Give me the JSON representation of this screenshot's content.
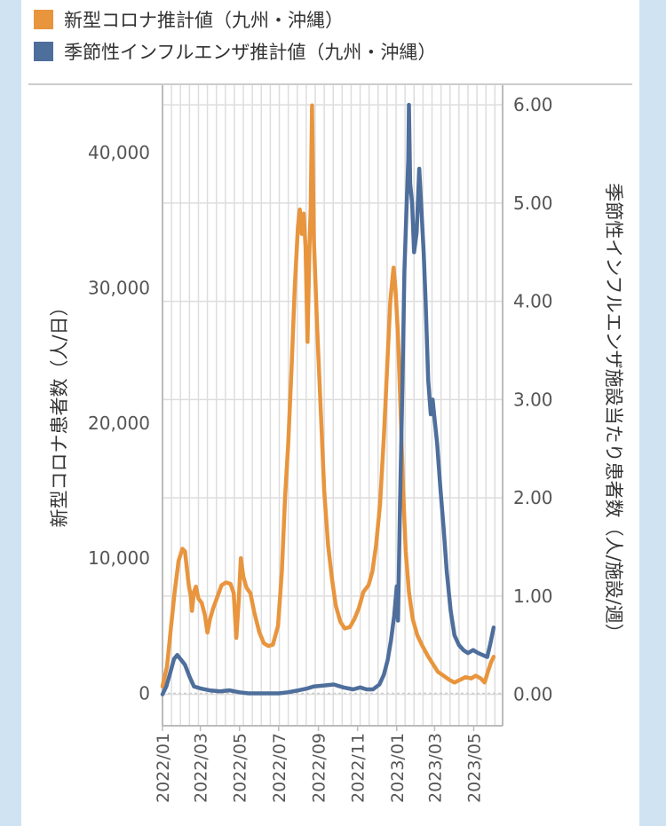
{
  "chart_data": {
    "type": "line",
    "legend": {
      "placement": "top-left",
      "entries": [
        "新型コロナ推計値（九州・沖縄）",
        "季節性インフルエンザ推計値（九州・沖縄）"
      ]
    },
    "xlabel": "",
    "ylabel": "新型コロナ患者数（人/日）",
    "y2label": "季節性インフルエンザ施設当たり患者数（人/施設/週）",
    "x_ticks": [
      "2022/01",
      "2022/03",
      "2022/05",
      "2022/07",
      "2022/09",
      "2022/11",
      "2023/01",
      "2023/03",
      "2023/05"
    ],
    "x_range": [
      "2022-01-01",
      "2023-06-15"
    ],
    "ylim": [
      -2400,
      45000
    ],
    "y_ticks": [
      0,
      10000,
      20000,
      30000,
      40000
    ],
    "y_tick_labels": [
      "0",
      "10,000",
      "20,000",
      "30,000",
      "40,000"
    ],
    "y2lim": [
      -0.32,
      6.2
    ],
    "y2_ticks": [
      0,
      1,
      2,
      3,
      4,
      5,
      6
    ],
    "y2_tick_labels": [
      "0.00",
      "1.00",
      "2.00",
      "3.00",
      "4.00",
      "5.00",
      "6.00"
    ],
    "grid": true,
    "series": [
      {
        "name": "新型コロナ推計値（九州・沖縄）",
        "axis": "left",
        "color": "#e8953e",
        "points": [
          [
            "2022-01-01",
            500
          ],
          [
            "2022-01-08",
            2000
          ],
          [
            "2022-01-14",
            4800
          ],
          [
            "2022-01-20",
            7500
          ],
          [
            "2022-01-26",
            9800
          ],
          [
            "2022-02-01",
            10700
          ],
          [
            "2022-02-05",
            10500
          ],
          [
            "2022-02-08",
            9200
          ],
          [
            "2022-02-11",
            8000
          ],
          [
            "2022-02-14",
            7200
          ],
          [
            "2022-02-16",
            6100
          ],
          [
            "2022-02-19",
            7500
          ],
          [
            "2022-02-22",
            7900
          ],
          [
            "2022-02-26",
            7000
          ],
          [
            "2022-03-03",
            6700
          ],
          [
            "2022-03-08",
            5800
          ],
          [
            "2022-03-12",
            4500
          ],
          [
            "2022-03-16",
            5500
          ],
          [
            "2022-03-21",
            6300
          ],
          [
            "2022-03-28",
            7200
          ],
          [
            "2022-04-03",
            8000
          ],
          [
            "2022-04-10",
            8200
          ],
          [
            "2022-04-17",
            8100
          ],
          [
            "2022-04-22",
            7400
          ],
          [
            "2022-04-26",
            4100
          ],
          [
            "2022-04-30",
            7000
          ],
          [
            "2022-05-03",
            10000
          ],
          [
            "2022-05-07",
            8600
          ],
          [
            "2022-05-12",
            7800
          ],
          [
            "2022-05-18",
            7400
          ],
          [
            "2022-05-24",
            6000
          ],
          [
            "2022-06-01",
            4500
          ],
          [
            "2022-06-08",
            3700
          ],
          [
            "2022-06-15",
            3500
          ],
          [
            "2022-06-22",
            3600
          ],
          [
            "2022-06-30",
            5000
          ],
          [
            "2022-07-06",
            9000
          ],
          [
            "2022-07-11",
            14500
          ],
          [
            "2022-07-16",
            18500
          ],
          [
            "2022-07-21",
            24000
          ],
          [
            "2022-07-26",
            30000
          ],
          [
            "2022-07-31",
            34500
          ],
          [
            "2022-08-03",
            35800
          ],
          [
            "2022-08-06",
            34000
          ],
          [
            "2022-08-09",
            35500
          ],
          [
            "2022-08-12",
            33000
          ],
          [
            "2022-08-15",
            26000
          ],
          [
            "2022-08-18",
            33000
          ],
          [
            "2022-08-20",
            36000
          ],
          [
            "2022-08-22",
            43500
          ],
          [
            "2022-08-25",
            33500
          ],
          [
            "2022-08-30",
            27000
          ],
          [
            "2022-09-05",
            20500
          ],
          [
            "2022-09-10",
            15000
          ],
          [
            "2022-09-16",
            11000
          ],
          [
            "2022-09-22",
            8500
          ],
          [
            "2022-09-28",
            6500
          ],
          [
            "2022-10-05",
            5300
          ],
          [
            "2022-10-12",
            4800
          ],
          [
            "2022-10-20",
            4900
          ],
          [
            "2022-10-27",
            5500
          ],
          [
            "2022-11-03",
            6300
          ],
          [
            "2022-11-10",
            7500
          ],
          [
            "2022-11-18",
            8000
          ],
          [
            "2022-11-24",
            9000
          ],
          [
            "2022-11-30",
            11000
          ],
          [
            "2022-12-06",
            14000
          ],
          [
            "2022-12-12",
            19000
          ],
          [
            "2022-12-17",
            24000
          ],
          [
            "2022-12-22",
            29000
          ],
          [
            "2022-12-27",
            31500
          ],
          [
            "2022-12-30",
            30000
          ],
          [
            "2023-01-03",
            26500
          ],
          [
            "2023-01-07",
            21000
          ],
          [
            "2023-01-11",
            15000
          ],
          [
            "2023-01-15",
            10500
          ],
          [
            "2023-01-20",
            7500
          ],
          [
            "2023-01-26",
            5500
          ],
          [
            "2023-02-02",
            4300
          ],
          [
            "2023-02-10",
            3500
          ],
          [
            "2023-02-18",
            2800
          ],
          [
            "2023-02-26",
            2200
          ],
          [
            "2023-03-06",
            1600
          ],
          [
            "2023-03-15",
            1300
          ],
          [
            "2023-03-24",
            1000
          ],
          [
            "2023-04-01",
            800
          ],
          [
            "2023-04-10",
            1000
          ],
          [
            "2023-04-18",
            1200
          ],
          [
            "2023-04-27",
            1100
          ],
          [
            "2023-05-04",
            1300
          ],
          [
            "2023-05-12",
            1100
          ],
          [
            "2023-05-18",
            800
          ],
          [
            "2023-05-23",
            1600
          ],
          [
            "2023-05-28",
            2300
          ],
          [
            "2023-06-01",
            2700
          ]
        ]
      },
      {
        "name": "季節性インフルエンザ推計値（九州・沖縄）",
        "axis": "right",
        "color": "#4e6e9c",
        "points": [
          [
            "2022-01-01",
            0.0
          ],
          [
            "2022-01-07",
            0.08
          ],
          [
            "2022-01-13",
            0.22
          ],
          [
            "2022-01-19",
            0.36
          ],
          [
            "2022-01-24",
            0.4
          ],
          [
            "2022-01-30",
            0.35
          ],
          [
            "2022-02-05",
            0.3
          ],
          [
            "2022-02-12",
            0.18
          ],
          [
            "2022-02-19",
            0.08
          ],
          [
            "2022-03-01",
            0.06
          ],
          [
            "2022-03-15",
            0.04
          ],
          [
            "2022-04-01",
            0.03
          ],
          [
            "2022-04-15",
            0.04
          ],
          [
            "2022-05-01",
            0.02
          ],
          [
            "2022-05-15",
            0.01
          ],
          [
            "2022-06-01",
            0.01
          ],
          [
            "2022-06-15",
            0.01
          ],
          [
            "2022-07-01",
            0.01
          ],
          [
            "2022-07-15",
            0.02
          ],
          [
            "2022-08-01",
            0.04
          ],
          [
            "2022-08-15",
            0.06
          ],
          [
            "2022-08-25",
            0.08
          ],
          [
            "2022-09-10",
            0.09
          ],
          [
            "2022-09-25",
            0.1
          ],
          [
            "2022-10-10",
            0.07
          ],
          [
            "2022-10-25",
            0.05
          ],
          [
            "2022-11-05",
            0.07
          ],
          [
            "2022-11-15",
            0.05
          ],
          [
            "2022-11-25",
            0.05
          ],
          [
            "2022-12-05",
            0.1
          ],
          [
            "2022-12-12",
            0.2
          ],
          [
            "2022-12-18",
            0.35
          ],
          [
            "2022-12-23",
            0.55
          ],
          [
            "2022-12-28",
            0.8
          ],
          [
            "2023-01-01",
            1.1
          ],
          [
            "2023-01-03",
            0.75
          ],
          [
            "2023-01-06",
            1.9
          ],
          [
            "2023-01-10",
            3.2
          ],
          [
            "2023-01-13",
            4.3
          ],
          [
            "2023-01-16",
            4.9
          ],
          [
            "2023-01-19",
            5.45
          ],
          [
            "2023-01-20",
            6.0
          ],
          [
            "2023-01-22",
            5.2
          ],
          [
            "2023-01-25",
            5.0
          ],
          [
            "2023-01-28",
            4.5
          ],
          [
            "2023-02-01",
            4.7
          ],
          [
            "2023-02-05",
            5.35
          ],
          [
            "2023-02-08",
            5.0
          ],
          [
            "2023-02-12",
            4.5
          ],
          [
            "2023-02-15",
            4.0
          ],
          [
            "2023-02-19",
            3.2
          ],
          [
            "2023-02-23",
            2.85
          ],
          [
            "2023-02-26",
            3.0
          ],
          [
            "2023-03-01",
            2.8
          ],
          [
            "2023-03-05",
            2.55
          ],
          [
            "2023-03-10",
            2.1
          ],
          [
            "2023-03-15",
            1.7
          ],
          [
            "2023-03-20",
            1.25
          ],
          [
            "2023-03-26",
            0.85
          ],
          [
            "2023-04-01",
            0.6
          ],
          [
            "2023-04-08",
            0.5
          ],
          [
            "2023-04-15",
            0.45
          ],
          [
            "2023-04-22",
            0.42
          ],
          [
            "2023-04-30",
            0.45
          ],
          [
            "2023-05-08",
            0.42
          ],
          [
            "2023-05-15",
            0.4
          ],
          [
            "2023-05-22",
            0.38
          ],
          [
            "2023-05-27",
            0.52
          ],
          [
            "2023-06-01",
            0.68
          ]
        ]
      }
    ]
  }
}
